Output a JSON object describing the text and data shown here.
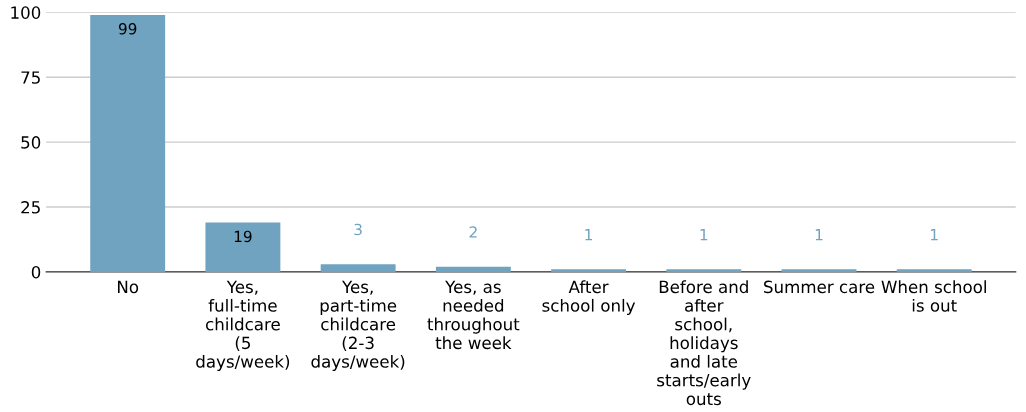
{
  "chart_data": {
    "type": "bar",
    "categories": [
      "No",
      "Yes, full-time childcare (5 days/week)",
      "Yes, part-time childcare (2-3 days/week)",
      "Yes, as needed throughout the week",
      "After school only",
      "Before and after school, holidays and late starts/early outs",
      "Summer care",
      "When school is out"
    ],
    "values": [
      99,
      19,
      3,
      2,
      1,
      1,
      1,
      1
    ],
    "color": "#6fa3c0",
    "ylim": [
      0,
      100
    ],
    "yticks": [
      0,
      25,
      50,
      75,
      100
    ],
    "grid": "y",
    "data_labels": true
  }
}
